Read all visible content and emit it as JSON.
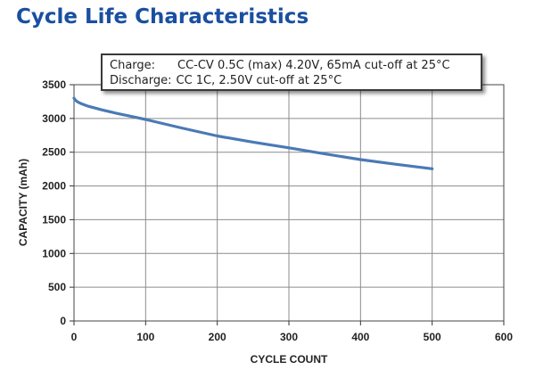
{
  "title": "Cycle Life Characteristics",
  "conditions": {
    "charge_key": "Charge:",
    "charge_value": "CC-CV 0.5C (max) 4.20V, 65mA cut-off at 25°C",
    "discharge_key": "Discharge:",
    "discharge_value": "CC 1C, 2.50V cut-off at 25°C"
  },
  "chart_data": {
    "type": "line",
    "title": "Cycle Life Characteristics",
    "xlabel": "CYCLE COUNT",
    "ylabel": "CAPACITY (mAh)",
    "xlim": [
      0,
      600
    ],
    "ylim": [
      0,
      3500
    ],
    "xticks": [
      0,
      100,
      200,
      300,
      400,
      500,
      600
    ],
    "yticks": [
      0,
      500,
      1000,
      1500,
      2000,
      2500,
      3000,
      3500
    ],
    "grid": true,
    "series": [
      {
        "name": "Capacity",
        "color": "#4a7ab5",
        "x": [
          0,
          2,
          5,
          10,
          20,
          40,
          60,
          80,
          100,
          150,
          200,
          250,
          300,
          350,
          400,
          450,
          500
        ],
        "y": [
          3300,
          3270,
          3245,
          3220,
          3180,
          3125,
          3075,
          3030,
          2985,
          2860,
          2740,
          2650,
          2565,
          2475,
          2390,
          2320,
          2255
        ]
      }
    ]
  }
}
